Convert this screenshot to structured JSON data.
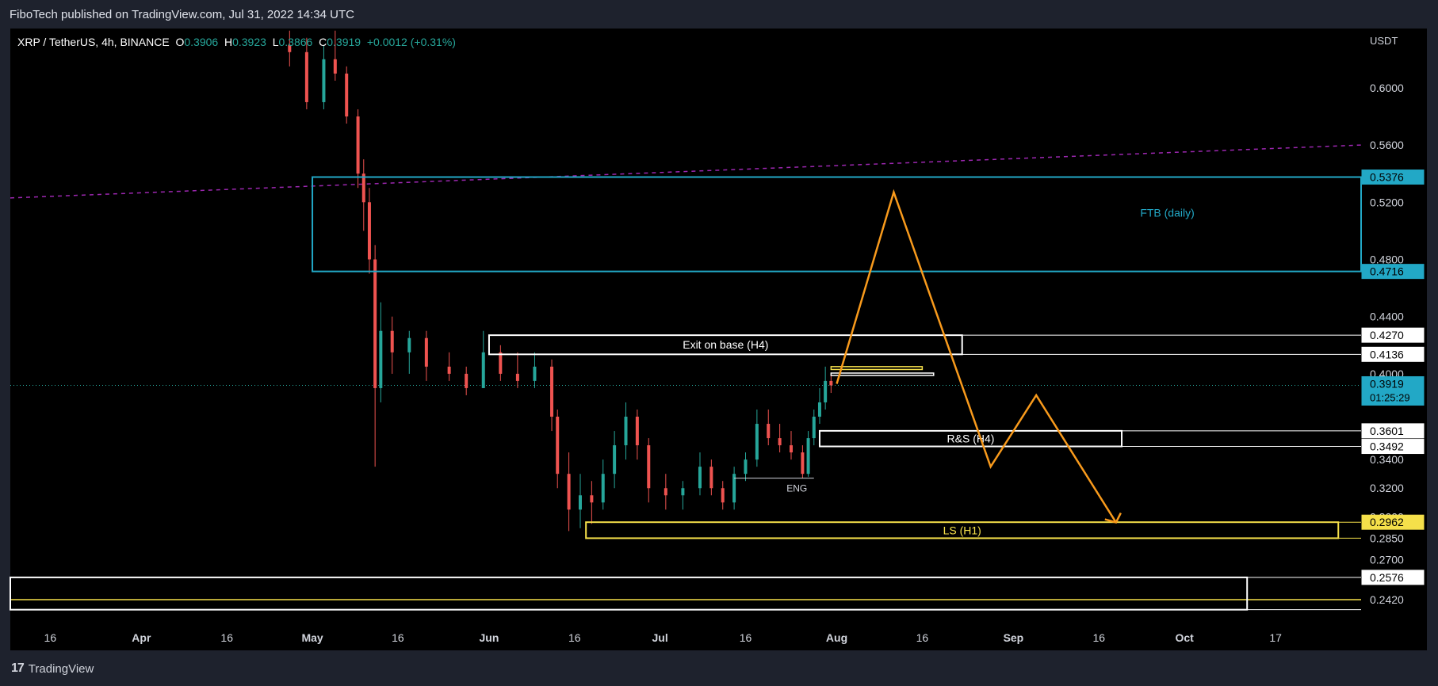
{
  "header": {
    "published": "FiboTech published on TradingView.com, Jul 31, 2022 14:34 UTC"
  },
  "legend": {
    "symbol": "XRP / TetherUS, 4h, BINANCE",
    "o_label": "O",
    "o": "0.3906",
    "h_label": "H",
    "h": "0.3923",
    "l_label": "L",
    "l": "0.3866",
    "c_label": "C",
    "c": "0.3919",
    "change": "+0.0012 (+0.31%)"
  },
  "footer": {
    "brand": "TradingView",
    "logo_icon": "tradingview-logo-icon"
  },
  "colors": {
    "up": "#26a69a",
    "down": "#ef5350",
    "accent_cyan": "#22a8c6",
    "yellow": "#f5e04a",
    "orange": "#f89a1c",
    "purple": "#9c27b0"
  },
  "chart_data": {
    "type": "candlestick",
    "currency": "USDT",
    "ylim": [
      0.2265,
      0.6415
    ],
    "y_ticks": [
      "0.6000",
      "0.5600",
      "0.5200",
      "0.4800",
      "0.4400",
      "0.4000",
      "0.3400",
      "0.3200",
      "0.3000",
      "0.2850",
      "0.2700",
      "0.2420"
    ],
    "x_ticks": [
      "16",
      "Apr",
      "16",
      "May",
      "16",
      "Jun",
      "16",
      "Jul",
      "16",
      "Aug",
      "16",
      "Sep",
      "16",
      "Oct",
      "17"
    ],
    "x_tick_dates": [
      "2022-03-16",
      "2022-04-01",
      "2022-04-16",
      "2022-05-01",
      "2022-05-16",
      "2022-06-01",
      "2022-06-16",
      "2022-07-01",
      "2022-07-16",
      "2022-08-01",
      "2022-08-16",
      "2022-09-01",
      "2022-09-16",
      "2022-10-01",
      "2022-10-17"
    ],
    "price_labels": [
      {
        "text": "0.5376",
        "value": 0.5376,
        "style": "cyan"
      },
      {
        "text": "0.4716",
        "value": 0.4716,
        "style": "cyan"
      },
      {
        "text": "0.4270",
        "value": 0.427,
        "style": "white"
      },
      {
        "text": "0.4136",
        "value": 0.4136,
        "style": "white"
      },
      {
        "text": "0.3919",
        "value": 0.3919,
        "style": "cyan",
        "countdown": "01:25:29"
      },
      {
        "text": "0.3601",
        "value": 0.3601,
        "style": "white"
      },
      {
        "text": "0.3492",
        "value": 0.3492,
        "style": "white"
      },
      {
        "text": "0.2962",
        "value": 0.2962,
        "style": "yellow"
      },
      {
        "text": "0.2576",
        "value": 0.2576,
        "style": "white"
      }
    ],
    "zones": [
      {
        "label": "FTB (daily)",
        "x0": "2022-05-01",
        "x1": "end",
        "y0": 0.4716,
        "y1": 0.5376,
        "color": "#22a8c6",
        "label_x": "2022-09-28"
      },
      {
        "label": "Exit on base (H4)",
        "x0": "2022-06-01",
        "x1": "2022-08-23",
        "y0": 0.4136,
        "y1": 0.427,
        "color": "#ffffff",
        "line_to_axis": true
      },
      {
        "label": "R&S (H4)",
        "x0": "2022-07-29",
        "x1": "2022-09-20",
        "y0": 0.3492,
        "y1": 0.3601,
        "color": "#ffffff",
        "line_to_axis": true
      },
      {
        "label": "LS (H1)",
        "x0": "2022-06-18",
        "x1": "2022-10-28",
        "y0": 0.285,
        "y1": 0.2962,
        "color": "#f5e04a",
        "line_to_axis": true
      },
      {
        "label": "",
        "x0": "start",
        "x1": "2022-10-12",
        "y0": 0.235,
        "y1": 0.2576,
        "color": "#ffffff",
        "line_to_axis": true
      }
    ],
    "small_zones": [
      {
        "x0": "2022-07-31",
        "x1": "2022-08-16",
        "y0": 0.403,
        "y1": 0.405,
        "color": "#f5e04a"
      },
      {
        "x0": "2022-07-31",
        "x1": "2022-08-18",
        "y0": 0.399,
        "y1": 0.4005,
        "color": "#ffffff"
      }
    ],
    "horizontal_lines": [
      {
        "y": 0.242,
        "x0": "start",
        "x1": "end",
        "color": "#f5e04a",
        "style": "solid"
      },
      {
        "y": 0.3919,
        "x0": "start",
        "x1": "end",
        "color": "#26a69a",
        "style": "dotted"
      }
    ],
    "trend_line": {
      "x0": "start",
      "y0": 0.523,
      "x1": "end",
      "y1": 0.56,
      "color": "#9c27b0",
      "style": "dashed"
    },
    "annotations": [
      {
        "text": "ENG",
        "x": "2022-07-25",
        "y": 0.322,
        "line": {
          "x0": "2022-07-14",
          "x1": "2022-07-28",
          "y": 0.327
        }
      }
    ],
    "projection": {
      "color": "#f89a1c",
      "points": [
        [
          "2022-08-01",
          0.393
        ],
        [
          "2022-08-11",
          0.527
        ],
        [
          "2022-08-28",
          0.335
        ],
        [
          "2022-09-05",
          0.385
        ],
        [
          "2022-09-19",
          0.296
        ]
      ],
      "arrow_head": true
    },
    "price_series_4h_close_approx": [
      {
        "date": "2022-04-27",
        "open": 0.63,
        "high": 0.64,
        "low": 0.615,
        "close": 0.625
      },
      {
        "date": "2022-04-30",
        "open": 0.625,
        "high": 0.635,
        "low": 0.585,
        "close": 0.59
      },
      {
        "date": "2022-05-03",
        "open": 0.59,
        "high": 0.63,
        "low": 0.585,
        "close": 0.62
      },
      {
        "date": "2022-05-05",
        "open": 0.62,
        "high": 0.64,
        "low": 0.605,
        "close": 0.61
      },
      {
        "date": "2022-05-07",
        "open": 0.61,
        "high": 0.615,
        "low": 0.575,
        "close": 0.58
      },
      {
        "date": "2022-05-09",
        "open": 0.58,
        "high": 0.585,
        "low": 0.53,
        "close": 0.54
      },
      {
        "date": "2022-05-10",
        "open": 0.54,
        "high": 0.55,
        "low": 0.5,
        "close": 0.52
      },
      {
        "date": "2022-05-11",
        "open": 0.52,
        "high": 0.53,
        "low": 0.47,
        "close": 0.48
      },
      {
        "date": "2022-05-12",
        "open": 0.48,
        "high": 0.49,
        "low": 0.335,
        "close": 0.39
      },
      {
        "date": "2022-05-13",
        "open": 0.39,
        "high": 0.45,
        "low": 0.38,
        "close": 0.43
      },
      {
        "date": "2022-05-15",
        "open": 0.43,
        "high": 0.44,
        "low": 0.4,
        "close": 0.415
      },
      {
        "date": "2022-05-18",
        "open": 0.415,
        "high": 0.43,
        "low": 0.4,
        "close": 0.425
      },
      {
        "date": "2022-05-21",
        "open": 0.425,
        "high": 0.43,
        "low": 0.395,
        "close": 0.405
      },
      {
        "date": "2022-05-25",
        "open": 0.405,
        "high": 0.415,
        "low": 0.395,
        "close": 0.4
      },
      {
        "date": "2022-05-28",
        "open": 0.4,
        "high": 0.405,
        "low": 0.385,
        "close": 0.39
      },
      {
        "date": "2022-05-31",
        "open": 0.39,
        "high": 0.43,
        "low": 0.39,
        "close": 0.415
      },
      {
        "date": "2022-06-03",
        "open": 0.415,
        "high": 0.42,
        "low": 0.395,
        "close": 0.4
      },
      {
        "date": "2022-06-06",
        "open": 0.4,
        "high": 0.415,
        "low": 0.39,
        "close": 0.395
      },
      {
        "date": "2022-06-09",
        "open": 0.395,
        "high": 0.415,
        "low": 0.39,
        "close": 0.405
      },
      {
        "date": "2022-06-12",
        "open": 0.405,
        "high": 0.41,
        "low": 0.36,
        "close": 0.37
      },
      {
        "date": "2022-06-13",
        "open": 0.37,
        "high": 0.375,
        "low": 0.32,
        "close": 0.33
      },
      {
        "date": "2022-06-15",
        "open": 0.33,
        "high": 0.345,
        "low": 0.29,
        "close": 0.305
      },
      {
        "date": "2022-06-17",
        "open": 0.305,
        "high": 0.33,
        "low": 0.292,
        "close": 0.315
      },
      {
        "date": "2022-06-19",
        "open": 0.315,
        "high": 0.325,
        "low": 0.295,
        "close": 0.31
      },
      {
        "date": "2022-06-21",
        "open": 0.31,
        "high": 0.34,
        "low": 0.305,
        "close": 0.33
      },
      {
        "date": "2022-06-23",
        "open": 0.33,
        "high": 0.36,
        "low": 0.32,
        "close": 0.35
      },
      {
        "date": "2022-06-25",
        "open": 0.35,
        "high": 0.38,
        "low": 0.34,
        "close": 0.37
      },
      {
        "date": "2022-06-27",
        "open": 0.37,
        "high": 0.375,
        "low": 0.34,
        "close": 0.35
      },
      {
        "date": "2022-06-29",
        "open": 0.35,
        "high": 0.355,
        "low": 0.31,
        "close": 0.32
      },
      {
        "date": "2022-07-02",
        "open": 0.32,
        "high": 0.33,
        "low": 0.305,
        "close": 0.315
      },
      {
        "date": "2022-07-05",
        "open": 0.315,
        "high": 0.325,
        "low": 0.305,
        "close": 0.32
      },
      {
        "date": "2022-07-08",
        "open": 0.32,
        "high": 0.345,
        "low": 0.315,
        "close": 0.335
      },
      {
        "date": "2022-07-10",
        "open": 0.335,
        "high": 0.34,
        "low": 0.315,
        "close": 0.32
      },
      {
        "date": "2022-07-12",
        "open": 0.32,
        "high": 0.325,
        "low": 0.305,
        "close": 0.31
      },
      {
        "date": "2022-07-14",
        "open": 0.31,
        "high": 0.335,
        "low": 0.305,
        "close": 0.33
      },
      {
        "date": "2022-07-16",
        "open": 0.33,
        "high": 0.345,
        "low": 0.325,
        "close": 0.34
      },
      {
        "date": "2022-07-18",
        "open": 0.34,
        "high": 0.375,
        "low": 0.335,
        "close": 0.365
      },
      {
        "date": "2022-07-20",
        "open": 0.365,
        "high": 0.375,
        "low": 0.35,
        "close": 0.355
      },
      {
        "date": "2022-07-22",
        "open": 0.355,
        "high": 0.365,
        "low": 0.345,
        "close": 0.35
      },
      {
        "date": "2022-07-24",
        "open": 0.35,
        "high": 0.36,
        "low": 0.34,
        "close": 0.345
      },
      {
        "date": "2022-07-26",
        "open": 0.345,
        "high": 0.35,
        "low": 0.327,
        "close": 0.33
      },
      {
        "date": "2022-07-27",
        "open": 0.33,
        "high": 0.36,
        "low": 0.328,
        "close": 0.355
      },
      {
        "date": "2022-07-28",
        "open": 0.355,
        "high": 0.375,
        "low": 0.35,
        "close": 0.37
      },
      {
        "date": "2022-07-29",
        "open": 0.37,
        "high": 0.39,
        "low": 0.365,
        "close": 0.38
      },
      {
        "date": "2022-07-30",
        "open": 0.38,
        "high": 0.405,
        "low": 0.375,
        "close": 0.395
      },
      {
        "date": "2022-07-31",
        "open": 0.395,
        "high": 0.4,
        "low": 0.3866,
        "close": 0.3919
      }
    ]
  }
}
